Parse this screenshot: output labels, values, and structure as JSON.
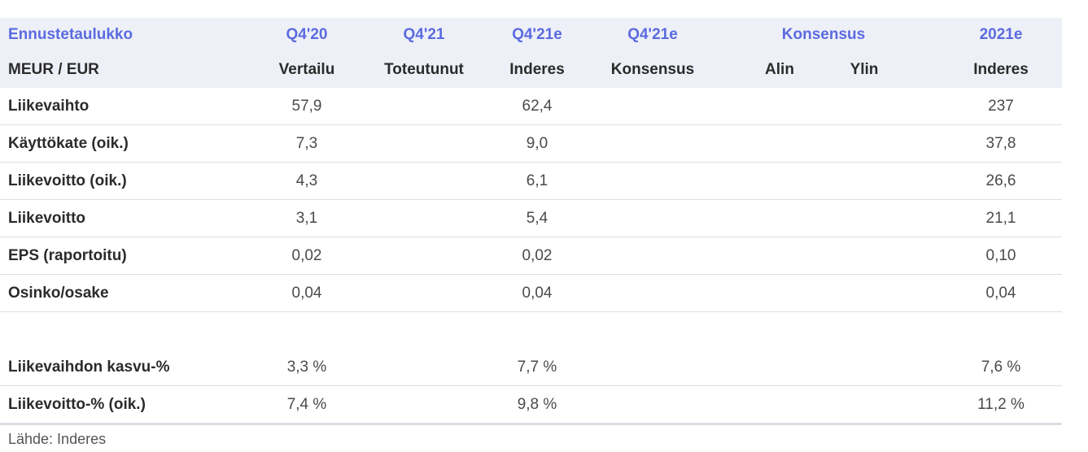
{
  "header": {
    "row1": {
      "label": "Ennustetaulukko",
      "col1": "Q4'20",
      "col2": "Q4'21",
      "col3": "Q4'21e",
      "col4": "Q4'21e",
      "consensus": "Konsensus",
      "col7": "2021e"
    },
    "row2": {
      "label": "MEUR / EUR",
      "col1": "Vertailu",
      "col2": "Toteutunut",
      "col3": "Inderes",
      "col4": "Konsensus",
      "col5": "Alin",
      "col6": "Ylin",
      "col7": "Inderes"
    }
  },
  "rows": [
    {
      "label": "Liikevaihto",
      "q4_20": "57,9",
      "q4_21e": "62,4",
      "y2021e": "237"
    },
    {
      "label": "Käyttökate (oik.)",
      "q4_20": "7,3",
      "q4_21e": "9,0",
      "y2021e": "37,8"
    },
    {
      "label": "Liikevoitto (oik.)",
      "q4_20": "4,3",
      "q4_21e": "6,1",
      "y2021e": "26,6"
    },
    {
      "label": "Liikevoitto",
      "q4_20": "3,1",
      "q4_21e": "5,4",
      "y2021e": "21,1"
    },
    {
      "label": "EPS (raportoitu)",
      "q4_20": "0,02",
      "q4_21e": "0,02",
      "y2021e": "0,10"
    },
    {
      "label": "Osinko/osake",
      "q4_20": "0,04",
      "q4_21e": "0,04",
      "y2021e": "0,04"
    }
  ],
  "growth_rows": [
    {
      "label": "Liikevaihdon kasvu-%",
      "q4_20": "3,3 %",
      "q4_21e": "7,7 %",
      "y2021e": "7,6 %"
    },
    {
      "label": "Liikevoitto-% (oik.)",
      "q4_20": "7,4 %",
      "q4_21e": "9,8 %",
      "y2021e": "11,2 %"
    }
  ],
  "footer": {
    "source": "Lähde: Inderes"
  },
  "colors": {
    "accent": "#5b6be0",
    "header_band": "#eef0f7",
    "rule": "#dcdfe6"
  }
}
